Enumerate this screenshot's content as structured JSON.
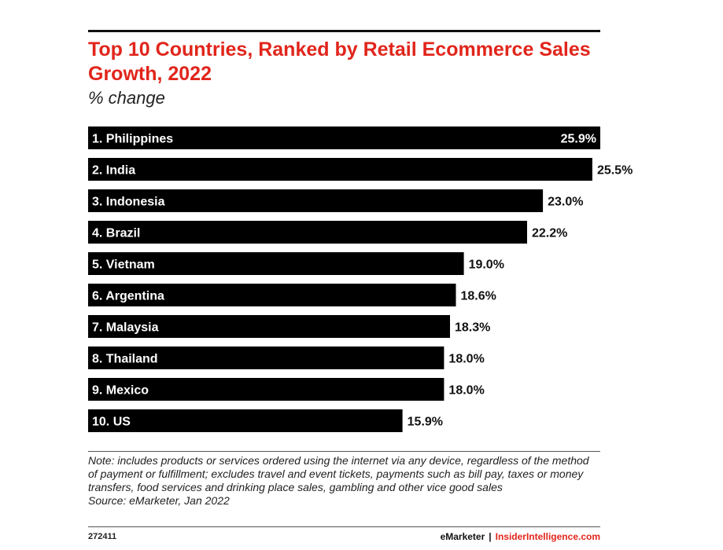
{
  "title": "Top 10 Countries, Ranked by Retail Ecommerce Sales Growth, 2022",
  "subtitle": "% change",
  "note": "Note: includes products or services ordered using the internet via any device, regardless of the method of payment or fulfillment; excludes travel and event tickets, payments such as bill pay, taxes or money transfers, food services and drinking place sales, gambling and other vice good sales",
  "source": "Source: eMarketer, Jan 2022",
  "footer": {
    "id": "272411",
    "brand_left": "eMarketer",
    "separator": "|",
    "brand_right": "InsiderIntelligence.com"
  },
  "colors": {
    "title": "#e1251b",
    "bar": "#000000",
    "bar_text": "#ffffff"
  },
  "chart_data": {
    "type": "bar",
    "orientation": "horizontal",
    "title": "Top 10 Countries, Ranked by Retail Ecommerce Sales Growth, 2022",
    "subtitle": "% change",
    "categories": [
      "1. Philippines",
      "2. India",
      "3. Indonesia",
      "4. Brazil",
      "5. Vietnam",
      "6. Argentina",
      "7. Malaysia",
      "8. Thailand",
      "9. Mexico",
      "10. US"
    ],
    "values": [
      25.9,
      25.5,
      23.0,
      22.2,
      19.0,
      18.6,
      18.3,
      18.0,
      18.0,
      15.9
    ],
    "value_labels": [
      "25.9%",
      "25.5%",
      "23.0%",
      "22.2%",
      "19.0%",
      "18.6%",
      "18.3%",
      "18.0%",
      "18.0%",
      "15.9%"
    ],
    "xlim": [
      0,
      25.9
    ],
    "grid": false,
    "legend": "none"
  }
}
